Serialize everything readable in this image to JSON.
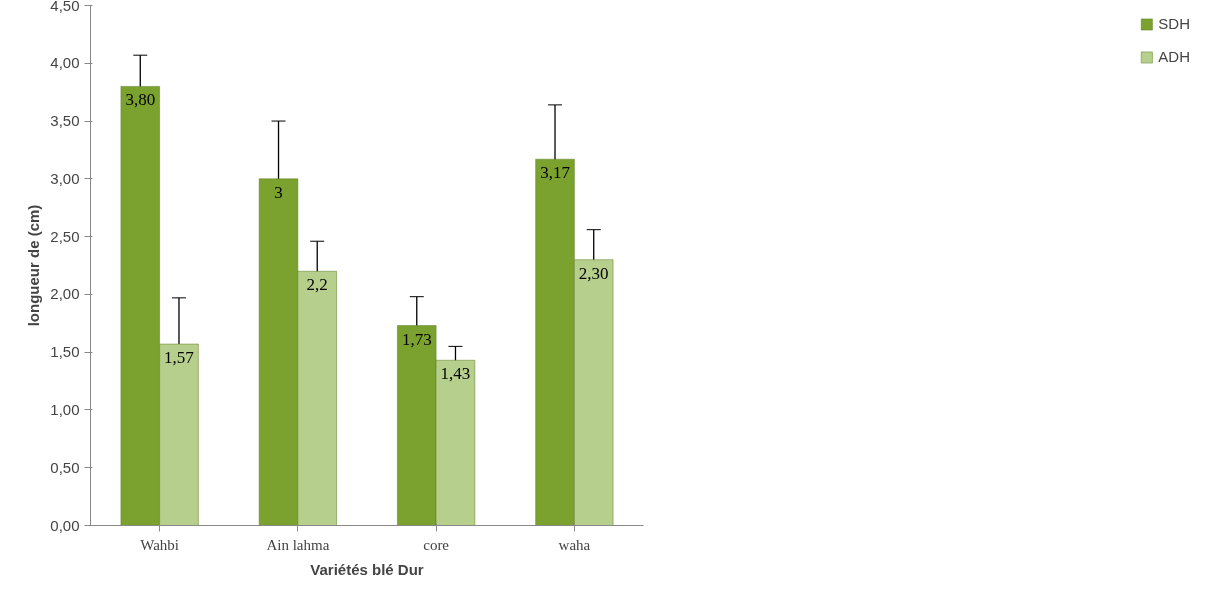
{
  "chart_data": {
    "type": "bar",
    "categories": [
      "Wahbi",
      "Ain lahma",
      "core",
      "waha"
    ],
    "xlabel": "Variétés blé Dur",
    "ylabel": "longueur de (cm)",
    "ylim": [
      0,
      4.5
    ],
    "yticks": [
      {
        "value": 0,
        "label": "0,00"
      },
      {
        "value": 0.5,
        "label": "0,50"
      },
      {
        "value": 1,
        "label": "1,00"
      },
      {
        "value": 1.5,
        "label": "1,50"
      },
      {
        "value": 2,
        "label": "2,00"
      },
      {
        "value": 2.5,
        "label": "2,50"
      },
      {
        "value": 3,
        "label": "3,00"
      },
      {
        "value": 3.5,
        "label": "3,50"
      },
      {
        "value": 4,
        "label": "4,00"
      },
      {
        "value": 4.5,
        "label": "4,50"
      }
    ],
    "series": [
      {
        "name": "SDH",
        "color": "#7ba22f",
        "values": [
          3.8,
          3,
          1.73,
          3.17
        ],
        "errors": [
          0.27,
          0.5,
          0.25,
          0.47
        ],
        "value_labels": [
          "3,80",
          "3",
          "1,73",
          "3,17"
        ]
      },
      {
        "name": "ADH",
        "color": "#b6cf8c",
        "values": [
          1.57,
          2.2,
          1.43,
          2.3
        ],
        "errors": [
          0.4,
          0.26,
          0.12,
          0.26
        ],
        "value_labels": [
          "1,57",
          "2,2",
          "1,43",
          "2,30"
        ]
      }
    ],
    "grid": false,
    "legend": "right"
  }
}
